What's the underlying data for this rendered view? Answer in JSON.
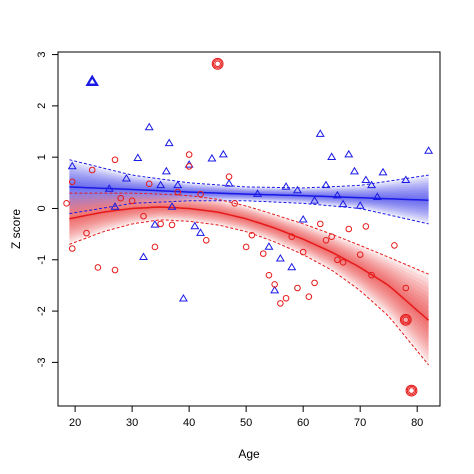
{
  "chart_data": {
    "type": "scatter",
    "xlabel": "Age",
    "ylabel": "Z score",
    "xlim": [
      17,
      84
    ],
    "ylim": [
      -3.85,
      3.05
    ],
    "xticks": [
      20,
      30,
      40,
      50,
      60,
      70,
      80
    ],
    "yticks": [
      -3,
      -2,
      -1,
      0,
      1,
      2,
      3
    ],
    "grid": false,
    "legend": "none",
    "colors": {
      "series_a": "#1a1ae6",
      "series_b": "#e61a1a",
      "box": "#000000"
    },
    "series": [
      {
        "marker": "triangle",
        "color": "#1a1ae6",
        "points": [
          [
            19.5,
            0.82
          ],
          [
            23,
            2.47
          ],
          [
            26,
            0.38
          ],
          [
            27,
            0.03
          ],
          [
            29,
            0.58
          ],
          [
            31,
            0.98
          ],
          [
            32,
            -0.95
          ],
          [
            33,
            1.58
          ],
          [
            34,
            -0.32
          ],
          [
            35,
            0.45
          ],
          [
            36,
            0.72
          ],
          [
            36.5,
            1.27
          ],
          [
            37,
            0.03
          ],
          [
            38,
            0.45
          ],
          [
            39,
            -1.76
          ],
          [
            40,
            0.85
          ],
          [
            41,
            -0.35
          ],
          [
            42,
            -0.48
          ],
          [
            44,
            0.97
          ],
          [
            46,
            1.05
          ],
          [
            47,
            0.48
          ],
          [
            52,
            0.28
          ],
          [
            54,
            -0.75
          ],
          [
            55,
            -1.6
          ],
          [
            56,
            -0.98
          ],
          [
            57,
            0.42
          ],
          [
            58,
            -1.15
          ],
          [
            59,
            0.35
          ],
          [
            60,
            -0.22
          ],
          [
            62,
            0.15
          ],
          [
            63,
            1.45
          ],
          [
            64,
            0.45
          ],
          [
            65,
            1.0
          ],
          [
            66,
            0.25
          ],
          [
            67,
            0.08
          ],
          [
            68,
            1.05
          ],
          [
            69,
            0.72
          ],
          [
            70,
            0.05
          ],
          [
            71,
            0.55
          ],
          [
            72,
            0.45
          ],
          [
            73,
            0.22
          ],
          [
            74,
            0.7
          ],
          [
            78,
            0.55
          ],
          [
            82,
            1.12
          ]
        ],
        "fit": {
          "x": [
            19,
            30,
            40,
            50,
            60,
            70,
            82
          ],
          "y": [
            0.42,
            0.37,
            0.32,
            0.28,
            0.25,
            0.21,
            0.16
          ],
          "ci_lower": [
            -0.1,
            0.1,
            0.15,
            0.15,
            0.1,
            0.0,
            -0.3
          ],
          "ci_upper": [
            0.95,
            0.65,
            0.5,
            0.42,
            0.4,
            0.45,
            0.65
          ]
        }
      },
      {
        "marker": "circle",
        "color": "#e61a1a",
        "points": [
          [
            18.5,
            0.1
          ],
          [
            19.5,
            0.52
          ],
          [
            19.5,
            -0.78
          ],
          [
            22,
            -0.48
          ],
          [
            23,
            0.75
          ],
          [
            24,
            -1.15
          ],
          [
            27,
            0.95
          ],
          [
            27,
            -1.2
          ],
          [
            28,
            0.2
          ],
          [
            30,
            0.15
          ],
          [
            32,
            -0.15
          ],
          [
            33,
            0.48
          ],
          [
            34,
            -0.75
          ],
          [
            35,
            -0.3
          ],
          [
            37,
            -0.32
          ],
          [
            38,
            0.32
          ],
          [
            40,
            1.05
          ],
          [
            40,
            0.82
          ],
          [
            42,
            0.28
          ],
          [
            43,
            -0.62
          ],
          [
            45,
            2.82
          ],
          [
            47,
            0.62
          ],
          [
            48,
            0.1
          ],
          [
            50,
            -0.75
          ],
          [
            51,
            -0.52
          ],
          [
            53,
            -0.88
          ],
          [
            54,
            -1.3
          ],
          [
            55,
            -1.48
          ],
          [
            56,
            -1.85
          ],
          [
            57,
            -1.75
          ],
          [
            58,
            -0.55
          ],
          [
            59,
            -1.55
          ],
          [
            60,
            -0.85
          ],
          [
            61,
            -1.72
          ],
          [
            62,
            -1.45
          ],
          [
            63,
            -0.3
          ],
          [
            64,
            -0.62
          ],
          [
            65,
            -0.55
          ],
          [
            66,
            -1.0
          ],
          [
            67,
            -1.05
          ],
          [
            68,
            -0.4
          ],
          [
            70,
            -0.9
          ],
          [
            71,
            -0.35
          ],
          [
            72,
            -1.3
          ],
          [
            76,
            -0.72
          ],
          [
            78,
            -1.55
          ],
          [
            78,
            -2.17
          ],
          [
            79,
            -3.55
          ]
        ],
        "fit": {
          "x": [
            19,
            25,
            30,
            35,
            40,
            45,
            50,
            55,
            60,
            65,
            70,
            75,
            82
          ],
          "y": [
            -0.2,
            -0.07,
            0.0,
            0.03,
            0.0,
            -0.07,
            -0.2,
            -0.38,
            -0.6,
            -0.85,
            -1.15,
            -1.5,
            -2.18
          ],
          "ci_lower": [
            -0.7,
            -0.45,
            -0.3,
            -0.22,
            -0.25,
            -0.32,
            -0.45,
            -0.65,
            -0.9,
            -1.2,
            -1.6,
            -2.1,
            -3.05
          ],
          "ci_upper": [
            0.3,
            0.3,
            0.3,
            0.28,
            0.25,
            0.18,
            0.05,
            -0.12,
            -0.3,
            -0.5,
            -0.72,
            -0.95,
            -1.28
          ]
        }
      }
    ]
  }
}
